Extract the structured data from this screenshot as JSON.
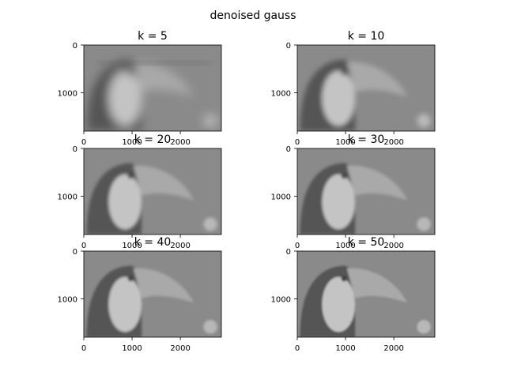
{
  "figure": {
    "suptitle": "denoised gauss",
    "background": "#ffffff",
    "panels": [
      {
        "title": "k = 5",
        "blur": 6.0,
        "ghost": true,
        "xticks": [
          "0",
          "1000",
          "2000"
        ],
        "yticks": [
          "0",
          "1000"
        ]
      },
      {
        "title": "k = 10",
        "blur": 3.2,
        "ghost": false,
        "xticks": [
          "0",
          "1000",
          "2000"
        ],
        "yticks": [
          "0",
          "1000"
        ]
      },
      {
        "title": "k = 20",
        "blur": 2.2,
        "ghost": false,
        "xticks": [
          "0",
          "1000",
          "2000"
        ],
        "yticks": [
          "0",
          "1000"
        ]
      },
      {
        "title": "k = 30",
        "blur": 1.8,
        "ghost": false,
        "xticks": [
          "0",
          "1000",
          "2000"
        ],
        "yticks": [
          "0",
          "1000"
        ]
      },
      {
        "title": "k = 40",
        "blur": 1.5,
        "ghost": false,
        "xticks": [
          "0",
          "1000",
          "2000"
        ],
        "yticks": [
          "0",
          "1000"
        ]
      },
      {
        "title": "k = 50",
        "blur": 1.3,
        "ghost": false,
        "xticks": [
          "0",
          "1000",
          "2000"
        ],
        "yticks": [
          "0",
          "1000"
        ]
      }
    ],
    "image_extent": {
      "x": [
        0,
        2850
      ],
      "y": [
        1800,
        0
      ]
    },
    "colors": {
      "image_background": "#8a8a8a",
      "toucan_body": "#545454",
      "toucan_chest": "#c4c4c4",
      "toucan_beak": "#a9a9a9",
      "toucan_eye": "#404040"
    }
  }
}
